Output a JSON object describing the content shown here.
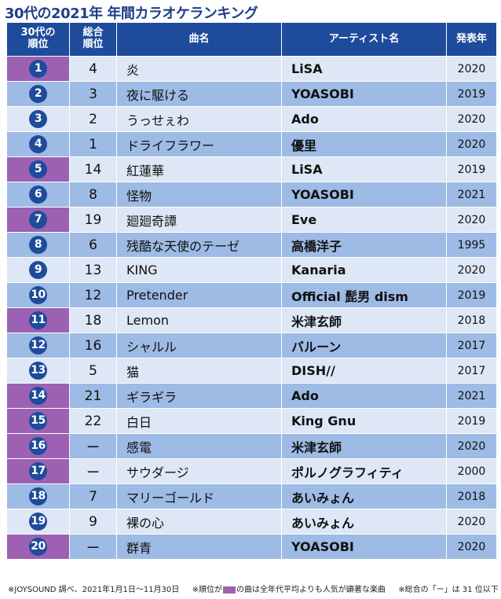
{
  "title": "30代の2021年 年間カラオケランキング",
  "headers": {
    "rank_l1": "30代の",
    "rank_l2": "順位",
    "overall_l1": "総合",
    "overall_l2": "順位",
    "song": "曲名",
    "artist": "アーティスト名",
    "year": "発表年"
  },
  "colors": {
    "header_bg": "#1e4b9b",
    "row_light": "#dde7f5",
    "row_dark": "#9dbbe4",
    "highlight": "#9c61b3",
    "title": "#1f3f8a"
  },
  "rows": [
    {
      "rank": "1",
      "overall": "4",
      "song": "炎",
      "artist": "LiSA",
      "year": "2020",
      "highlight": true
    },
    {
      "rank": "2",
      "overall": "3",
      "song": "夜に駆ける",
      "artist": "YOASOBI",
      "year": "2019",
      "highlight": false
    },
    {
      "rank": "3",
      "overall": "2",
      "song": "うっせぇわ",
      "artist": "Ado",
      "year": "2020",
      "highlight": false
    },
    {
      "rank": "4",
      "overall": "1",
      "song": "ドライフラワー",
      "artist": "優里",
      "year": "2020",
      "highlight": false
    },
    {
      "rank": "5",
      "overall": "14",
      "song": "紅蓮華",
      "artist": "LiSA",
      "year": "2019",
      "highlight": true
    },
    {
      "rank": "6",
      "overall": "8",
      "song": "怪物",
      "artist": "YOASOBI",
      "year": "2021",
      "highlight": false
    },
    {
      "rank": "7",
      "overall": "19",
      "song": "廻廻奇譚",
      "artist": "Eve",
      "year": "2020",
      "highlight": true
    },
    {
      "rank": "8",
      "overall": "6",
      "song": "残酷な天使のテーゼ",
      "artist": "高橋洋子",
      "year": "1995",
      "highlight": false
    },
    {
      "rank": "9",
      "overall": "13",
      "song": "KING",
      "artist": "Kanaria",
      "year": "2020",
      "highlight": false
    },
    {
      "rank": "10",
      "overall": "12",
      "song": "Pretender",
      "artist": "Official 髭男 dism",
      "year": "2019",
      "highlight": false
    },
    {
      "rank": "11",
      "overall": "18",
      "song": "Lemon",
      "artist": "米津玄師",
      "year": "2018",
      "highlight": true
    },
    {
      "rank": "12",
      "overall": "16",
      "song": "シャルル",
      "artist": "バルーン",
      "year": "2017",
      "highlight": false
    },
    {
      "rank": "13",
      "overall": "5",
      "song": "猫",
      "artist": "DISH//",
      "year": "2017",
      "highlight": false
    },
    {
      "rank": "14",
      "overall": "21",
      "song": "ギラギラ",
      "artist": "Ado",
      "year": "2021",
      "highlight": true
    },
    {
      "rank": "15",
      "overall": "22",
      "song": "白日",
      "artist": "King Gnu",
      "year": "2019",
      "highlight": true
    },
    {
      "rank": "16",
      "overall": "ー",
      "song": "感電",
      "artist": "米津玄師",
      "year": "2020",
      "highlight": true
    },
    {
      "rank": "17",
      "overall": "ー",
      "song": "サウダージ",
      "artist": "ポルノグラフィティ",
      "year": "2000",
      "highlight": true
    },
    {
      "rank": "18",
      "overall": "7",
      "song": "マリーゴールド",
      "artist": "あいみょん",
      "year": "2018",
      "highlight": false
    },
    {
      "rank": "19",
      "overall": "9",
      "song": "裸の心",
      "artist": "あいみょん",
      "year": "2020",
      "highlight": false
    },
    {
      "rank": "20",
      "overall": "ー",
      "song": "群青",
      "artist": "YOASOBI",
      "year": "2020",
      "highlight": true
    }
  ],
  "footnote": {
    "source": "※JOYSOUND 調べ、2021年1月1日～11月30日",
    "hl_before": "※順位が",
    "hl_after": "の曲は全年代平均よりも人気が顕著な楽曲",
    "dash_note": "※総合の「ー」は 31 位以下"
  }
}
